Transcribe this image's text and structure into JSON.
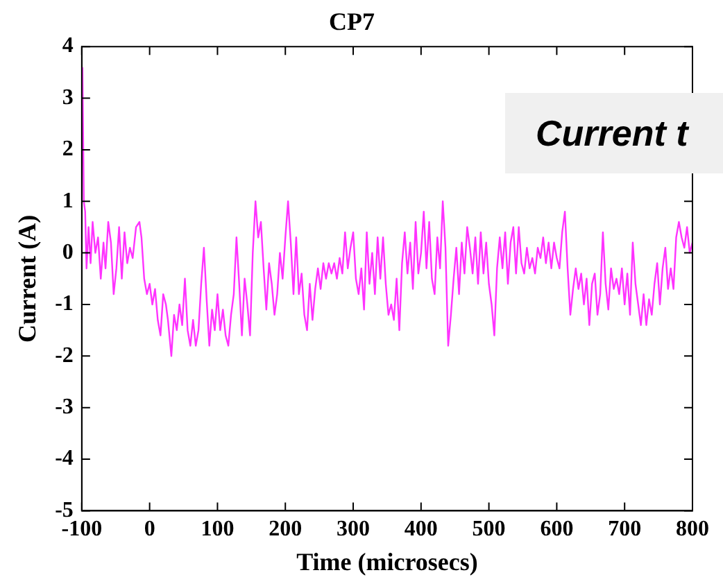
{
  "chart_data": {
    "type": "line",
    "title": "CP7",
    "xlabel": "Time (microsecs)",
    "ylabel": "Current (A)",
    "annotations": [
      "Current t"
    ],
    "xlim": [
      -100,
      800
    ],
    "xticks": [
      -100,
      0,
      100,
      200,
      300,
      400,
      500,
      600,
      700,
      800
    ],
    "ylim": [
      -5,
      4
    ],
    "yticks": [
      -5,
      -4,
      -3,
      -2,
      -1,
      0,
      1,
      2,
      3,
      4
    ],
    "grid": false,
    "legend": false,
    "marker": "none",
    "line_style": "solid",
    "series": [
      {
        "color": "#ff33ff",
        "x": [
          -99,
          -97,
          -95,
          -93,
          -90,
          -87,
          -84,
          -80,
          -76,
          -72,
          -68,
          -65,
          -61,
          -57,
          -53,
          -49,
          -45,
          -41,
          -37,
          -33,
          -29,
          -25,
          -20,
          -15,
          -12,
          -8,
          -4,
          0,
          4,
          8,
          12,
          16,
          20,
          24,
          27,
          32,
          36,
          40,
          44,
          48,
          52,
          56,
          60,
          64,
          68,
          72,
          76,
          80,
          84,
          88,
          92,
          96,
          100,
          104,
          108,
          112,
          116,
          120,
          124,
          128,
          132,
          136,
          140,
          144,
          148,
          152,
          156,
          160,
          164,
          168,
          172,
          176,
          180,
          184,
          188,
          192,
          196,
          200,
          204,
          208,
          212,
          216,
          220,
          224,
          228,
          232,
          236,
          240,
          244,
          248,
          252,
          256,
          260,
          264,
          268,
          272,
          276,
          280,
          284,
          288,
          292,
          296,
          300,
          304,
          308,
          312,
          316,
          320,
          324,
          328,
          332,
          336,
          340,
          344,
          348,
          352,
          356,
          360,
          364,
          368,
          372,
          376,
          380,
          384,
          388,
          392,
          396,
          400,
          404,
          408,
          412,
          416,
          420,
          424,
          428,
          432,
          436,
          440,
          444,
          448,
          452,
          456,
          460,
          464,
          468,
          472,
          476,
          480,
          484,
          488,
          492,
          496,
          500,
          504,
          508,
          512,
          516,
          520,
          524,
          528,
          532,
          536,
          540,
          544,
          548,
          552,
          556,
          560,
          564,
          568,
          572,
          576,
          580,
          584,
          588,
          592,
          596,
          600,
          604,
          608,
          612,
          616,
          620,
          624,
          628,
          632,
          636,
          640,
          644,
          648,
          652,
          656,
          660,
          664,
          668,
          672,
          676,
          680,
          684,
          688,
          692,
          696,
          700,
          704,
          708,
          712,
          716,
          720,
          724,
          728,
          732,
          736,
          740,
          744,
          748,
          752,
          756,
          760,
          764,
          768,
          772,
          776,
          780,
          784,
          788,
          792,
          796,
          800
        ],
        "values": [
          3.6,
          1,
          0.8,
          -0.3,
          0.5,
          -0.2,
          0.6,
          0,
          0.3,
          -0.5,
          0.2,
          -0.3,
          0.6,
          0.2,
          -0.8,
          -0.3,
          0.5,
          -0.5,
          0.4,
          -0.2,
          0.1,
          -0.1,
          0.5,
          0.6,
          0.3,
          -0.5,
          -0.8,
          -0.6,
          -1,
          -0.7,
          -1.3,
          -1.6,
          -0.8,
          -1,
          -1.3,
          -2,
          -1.2,
          -1.5,
          -1,
          -1.4,
          -0.5,
          -1.5,
          -1.8,
          -1.3,
          -1.8,
          -1.5,
          -0.6,
          0.1,
          -0.9,
          -1.8,
          -1.1,
          -1.5,
          -0.8,
          -1.5,
          -1.1,
          -1.6,
          -1.8,
          -1.2,
          -0.8,
          0.3,
          -0.6,
          -1.6,
          -0.5,
          -1,
          -1.6,
          0,
          1,
          0.3,
          0.6,
          -0.3,
          -1.1,
          -0.2,
          -0.6,
          -1.2,
          -0.8,
          0,
          -0.5,
          0.3,
          1,
          0.2,
          -0.8,
          0.3,
          -0.8,
          -0.4,
          -1.2,
          -1.5,
          -0.6,
          -1.3,
          -0.7,
          -0.3,
          -0.7,
          -0.2,
          -0.5,
          -0.2,
          -0.4,
          -0.2,
          -0.5,
          -0.1,
          -0.4,
          0.4,
          -0.3,
          0.1,
          0.4,
          -0.5,
          -0.8,
          -0.3,
          -1.1,
          0.4,
          -0.6,
          0,
          -0.8,
          0.3,
          -0.5,
          0.3,
          -0.6,
          -1.2,
          -1,
          -1.3,
          -0.5,
          -1.5,
          -0.2,
          0.4,
          -0.4,
          0.2,
          -0.7,
          0.6,
          -0.4,
          0,
          0.8,
          -0.3,
          0.6,
          -0.5,
          -0.8,
          0.3,
          -0.3,
          1,
          0.1,
          -1.8,
          -1.2,
          -0.5,
          0.1,
          -0.8,
          0.2,
          -0.4,
          0.5,
          0.1,
          -0.4,
          0.3,
          -0.6,
          0.4,
          -0.4,
          0.2,
          -0.6,
          -1,
          -1.6,
          -0.3,
          0.3,
          -0.3,
          0.4,
          -0.6,
          0.2,
          0.5,
          -0.4,
          0.5,
          -0.2,
          -0.4,
          0.1,
          -0.3,
          -0.1,
          -0.4,
          0.1,
          -0.1,
          0.3,
          -0.2,
          0.2,
          -0.3,
          0.2,
          -0.1,
          -0.3,
          0.4,
          0.8,
          -0.3,
          -1.2,
          -0.7,
          -0.3,
          -0.7,
          -0.4,
          -1,
          -0.5,
          -1.4,
          -0.6,
          -0.4,
          -1.2,
          -0.8,
          0.4,
          -0.6,
          -1.1,
          -0.3,
          -0.7,
          -0.5,
          -0.8,
          -0.3,
          -1,
          -0.4,
          -1.2,
          0.2,
          -0.6,
          -1,
          -1.4,
          -0.8,
          -1.4,
          -0.9,
          -1.2,
          -0.6,
          -0.2,
          -1,
          -0.3,
          0.1,
          -0.7,
          -0.3,
          -0.7,
          0.3,
          0.6,
          0.3,
          0.1,
          0.5,
          0,
          0.2
        ]
      }
    ]
  }
}
